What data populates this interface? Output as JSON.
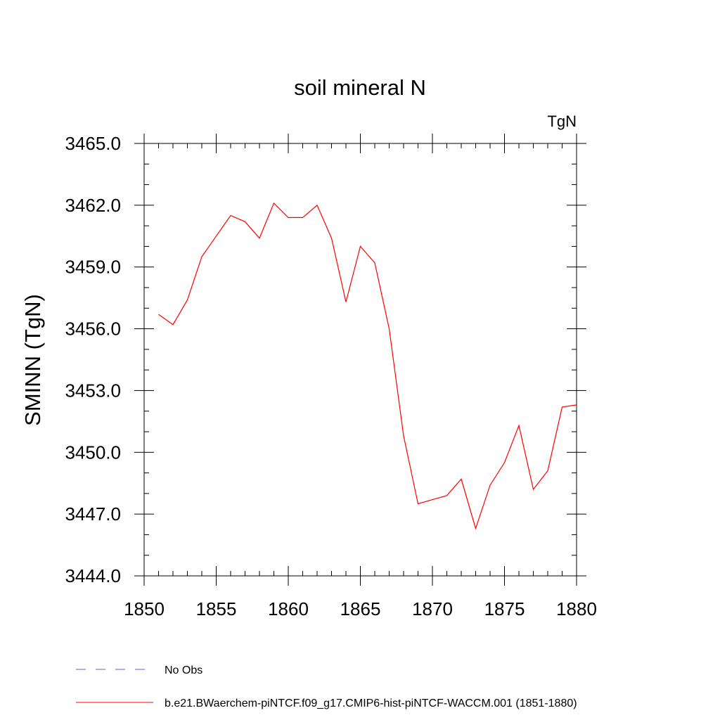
{
  "chart_data": {
    "type": "line",
    "title": "soil mineral N",
    "units_label": "TgN",
    "ylabel": "SMINN  (TgN)",
    "xlabel": "",
    "xlim": [
      1850,
      1880
    ],
    "ylim": [
      3444.0,
      3465.0
    ],
    "x_major_ticks": [
      1850,
      1855,
      1860,
      1865,
      1870,
      1875,
      1880
    ],
    "x_tick_labels": [
      "1850",
      "1855",
      "1860",
      "1865",
      "1870",
      "1875",
      "1880"
    ],
    "y_major_ticks": [
      3444.0,
      3447.0,
      3450.0,
      3453.0,
      3456.0,
      3459.0,
      3462.0,
      3465.0
    ],
    "y_tick_labels": [
      "3444.0",
      "3447.0",
      "3450.0",
      "3453.0",
      "3456.0",
      "3459.0",
      "3462.0",
      "3465.0"
    ],
    "grid": false,
    "legend_position": "bottom",
    "series": [
      {
        "name": "b.e21.BWaerchem-piNTCF.f09_g17.CMIP6-hist-piNTCF-WACCM.001 (1851-1880)",
        "color": "#ff0000",
        "dash": "solid",
        "x": [
          1851,
          1852,
          1853,
          1854,
          1855,
          1856,
          1857,
          1858,
          1859,
          1860,
          1861,
          1862,
          1863,
          1864,
          1865,
          1866,
          1867,
          1868,
          1869,
          1870,
          1871,
          1872,
          1873,
          1874,
          1875,
          1876,
          1877,
          1878,
          1879,
          1880
        ],
        "values": [
          3456.7,
          3456.2,
          3457.4,
          3459.5,
          3460.5,
          3461.5,
          3461.2,
          3460.4,
          3462.1,
          3461.4,
          3461.4,
          3462.0,
          3460.4,
          3457.3,
          3460.0,
          3459.2,
          3456.0,
          3450.8,
          3447.5,
          3447.7,
          3447.9,
          3448.7,
          3446.3,
          3448.4,
          3449.5,
          3451.3,
          3448.2,
          3449.1,
          3452.2,
          3452.3
        ]
      }
    ],
    "legend": [
      {
        "label": "No Obs",
        "color": "#6a5acd",
        "dash": "dashed"
      },
      {
        "label": "b.e21.BWaerchem-piNTCF.f09_g17.CMIP6-hist-piNTCF-WACCM.001 (1851-1880)",
        "color": "#ff0000",
        "dash": "solid"
      }
    ]
  }
}
